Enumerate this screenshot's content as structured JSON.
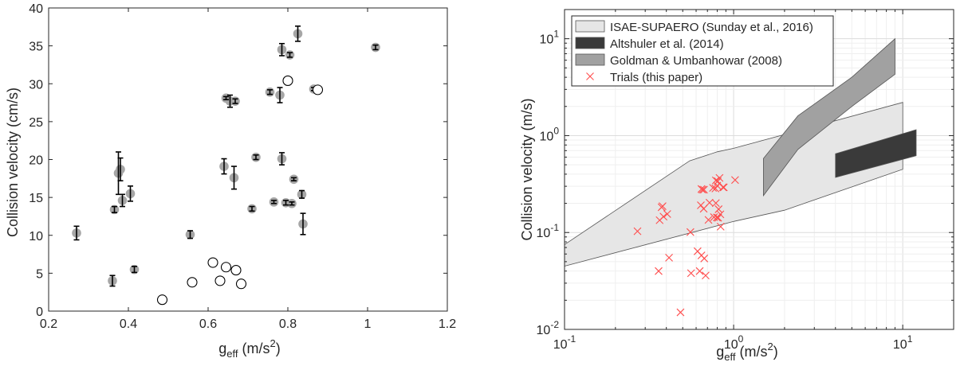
{
  "chart_data": [
    {
      "type": "scatter",
      "xlabel": "g",
      "xlabel_sub": "eff",
      "xlabel_unit": " (m/s",
      "xlabel_sup": "2",
      "xlabel_close": ")",
      "ylabel": "Collision velocity (cm/s)",
      "xlim": [
        0.2,
        1.2
      ],
      "ylim": [
        0,
        40
      ],
      "xticks": [
        "0.2",
        "0.4",
        "0.6",
        "0.8",
        "1",
        "1.2"
      ],
      "yticks": [
        "0",
        "5",
        "10",
        "15",
        "20",
        "25",
        "30",
        "35",
        "40"
      ],
      "grid": false,
      "series": [
        {
          "marker": "filled-circle-with-errorbar",
          "color": "#a6a6a6",
          "points": [
            {
              "x": 0.27,
              "y": 10.3,
              "err": 0.9
            },
            {
              "x": 0.36,
              "y": 4.0,
              "err": 0.7
            },
            {
              "x": 0.365,
              "y": 13.4,
              "err": 0.4
            },
            {
              "x": 0.375,
              "y": 18.2,
              "err": 2.8
            },
            {
              "x": 0.38,
              "y": 18.7,
              "err": 1.5
            },
            {
              "x": 0.385,
              "y": 14.6,
              "err": 0.8
            },
            {
              "x": 0.405,
              "y": 15.5,
              "err": 1.0
            },
            {
              "x": 0.415,
              "y": 5.5,
              "err": 0.4
            },
            {
              "x": 0.555,
              "y": 10.1,
              "err": 0.5
            },
            {
              "x": 0.64,
              "y": 19.1,
              "err": 1.0
            },
            {
              "x": 0.645,
              "y": 28.1,
              "err": 0.2
            },
            {
              "x": 0.655,
              "y": 27.7,
              "err": 0.8
            },
            {
              "x": 0.665,
              "y": 17.6,
              "err": 1.5
            },
            {
              "x": 0.668,
              "y": 27.7,
              "err": 0.3
            },
            {
              "x": 0.71,
              "y": 13.5,
              "err": 0.3
            },
            {
              "x": 0.72,
              "y": 20.3,
              "err": 0.3
            },
            {
              "x": 0.755,
              "y": 28.9,
              "err": 0.3
            },
            {
              "x": 0.765,
              "y": 14.4,
              "err": 0.2
            },
            {
              "x": 0.78,
              "y": 28.5,
              "err": 1.0
            },
            {
              "x": 0.785,
              "y": 34.5,
              "err": 0.8
            },
            {
              "x": 0.785,
              "y": 20.1,
              "err": 0.8
            },
            {
              "x": 0.795,
              "y": 14.3,
              "err": 0.3
            },
            {
              "x": 0.805,
              "y": 33.8,
              "err": 0.3
            },
            {
              "x": 0.81,
              "y": 14.2,
              "err": 0.2
            },
            {
              "x": 0.815,
              "y": 17.4,
              "err": 0.2
            },
            {
              "x": 0.825,
              "y": 36.6,
              "err": 1.0
            },
            {
              "x": 0.835,
              "y": 15.4,
              "err": 0.5
            },
            {
              "x": 0.838,
              "y": 11.5,
              "err": 1.4
            },
            {
              "x": 0.865,
              "y": 29.3,
              "err": 0.2
            },
            {
              "x": 1.02,
              "y": 34.8,
              "err": 0.3
            }
          ]
        },
        {
          "marker": "open-circle",
          "color": "#000000",
          "points": [
            {
              "x": 0.485,
              "y": 1.5
            },
            {
              "x": 0.56,
              "y": 3.8
            },
            {
              "x": 0.612,
              "y": 6.4
            },
            {
              "x": 0.63,
              "y": 4.0
            },
            {
              "x": 0.645,
              "y": 5.8
            },
            {
              "x": 0.67,
              "y": 5.4
            },
            {
              "x": 0.683,
              "y": 3.6
            },
            {
              "x": 0.8,
              "y": 30.4
            },
            {
              "x": 0.875,
              "y": 29.2
            }
          ]
        }
      ]
    },
    {
      "type": "area",
      "scale": "log-log",
      "xlabel": "g",
      "xlabel_sub": "eff",
      "xlabel_unit": " (m/s",
      "xlabel_sup": "2",
      "xlabel_close": ")",
      "ylabel": "Collision velocity (m/s)",
      "xlim": [
        0.1,
        20
      ],
      "ylim": [
        0.01,
        20
      ],
      "xticks": [
        {
          "base": "10",
          "exp": "-1"
        },
        {
          "base": "10",
          "exp": "0"
        },
        {
          "base": "10",
          "exp": "1"
        }
      ],
      "yticks": [
        {
          "base": "10",
          "exp": "-2"
        },
        {
          "base": "10",
          "exp": "-1"
        },
        {
          "base": "10",
          "exp": "0"
        },
        {
          "base": "10",
          "exp": "1"
        }
      ],
      "grid": true,
      "legend_position": "top-left",
      "series": [
        {
          "name": "ISAE-SUPAERO (Sunday et al., 2016)",
          "fill": "#e6e6e6",
          "polygon": [
            [
              0.1,
              0.075
            ],
            [
              0.55,
              0.55
            ],
            [
              0.8,
              0.68
            ],
            [
              1.0,
              0.74
            ],
            [
              10.0,
              2.2
            ],
            [
              10.0,
              0.45
            ],
            [
              2.0,
              0.17
            ],
            [
              1.0,
              0.13
            ],
            [
              0.1,
              0.045
            ]
          ]
        },
        {
          "name": "Altshuler et al. (2014)",
          "fill": "#3a3a3a",
          "polygon": [
            [
              4.0,
              0.65
            ],
            [
              12.0,
              1.15
            ],
            [
              12.0,
              0.62
            ],
            [
              4.0,
              0.37
            ]
          ]
        },
        {
          "name": "Goldman & Umbanhowar (2008)",
          "fill": "#a1a1a1",
          "polygon": [
            [
              1.5,
              0.58
            ],
            [
              2.4,
              1.6
            ],
            [
              5.0,
              4.0
            ],
            [
              9.0,
              10.0
            ],
            [
              9.0,
              4.3
            ],
            [
              5.0,
              2.0
            ],
            [
              2.4,
              0.72
            ],
            [
              1.5,
              0.24
            ]
          ]
        },
        {
          "name": "Trials (this paper)",
          "marker": "x",
          "color": "#ff4d4d",
          "points": [
            [
              0.27,
              0.103
            ],
            [
              0.36,
              0.04
            ],
            [
              0.365,
              0.134
            ],
            [
              0.375,
              0.182
            ],
            [
              0.38,
              0.187
            ],
            [
              0.385,
              0.146
            ],
            [
              0.405,
              0.155
            ],
            [
              0.415,
              0.055
            ],
            [
              0.485,
              0.015
            ],
            [
              0.555,
              0.101
            ],
            [
              0.56,
              0.038
            ],
            [
              0.612,
              0.064
            ],
            [
              0.63,
              0.04
            ],
            [
              0.64,
              0.191
            ],
            [
              0.645,
              0.281
            ],
            [
              0.645,
              0.058
            ],
            [
              0.655,
              0.277
            ],
            [
              0.665,
              0.176
            ],
            [
              0.668,
              0.277
            ],
            [
              0.67,
              0.054
            ],
            [
              0.683,
              0.036
            ],
            [
              0.71,
              0.135
            ],
            [
              0.72,
              0.203
            ],
            [
              0.755,
              0.289
            ],
            [
              0.765,
              0.144
            ],
            [
              0.78,
              0.285
            ],
            [
              0.785,
              0.345
            ],
            [
              0.785,
              0.201
            ],
            [
              0.795,
              0.143
            ],
            [
              0.8,
              0.304
            ],
            [
              0.805,
              0.338
            ],
            [
              0.81,
              0.142
            ],
            [
              0.815,
              0.174
            ],
            [
              0.825,
              0.366
            ],
            [
              0.835,
              0.154
            ],
            [
              0.838,
              0.115
            ],
            [
              0.865,
              0.293
            ],
            [
              0.875,
              0.292
            ],
            [
              1.02,
              0.348
            ]
          ]
        }
      ]
    }
  ]
}
